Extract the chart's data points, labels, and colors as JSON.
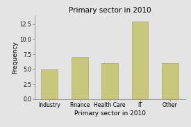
{
  "categories": [
    "Industry",
    "Finance",
    "Health Care",
    "IT",
    "Other"
  ],
  "values": [
    5,
    7,
    6,
    13,
    6
  ],
  "bar_color": "#c8c87c",
  "bar_edge_color": "#b0b068",
  "title": "Primary sector in 2010",
  "xlabel": "Primary sector in 2010",
  "ylabel": "Frequency",
  "ylim": [
    0,
    14
  ],
  "yticks": [
    0.0,
    2.5,
    5.0,
    7.5,
    10.0,
    12.5
  ],
  "ytick_labels": [
    "0.0",
    "2.5",
    "5.0",
    "7.5",
    "10.0",
    "12.5"
  ],
  "background_color": "#e4e4e4",
  "title_fontsize": 7.5,
  "label_fontsize": 6.5,
  "tick_fontsize": 5.5,
  "bar_width": 0.55
}
